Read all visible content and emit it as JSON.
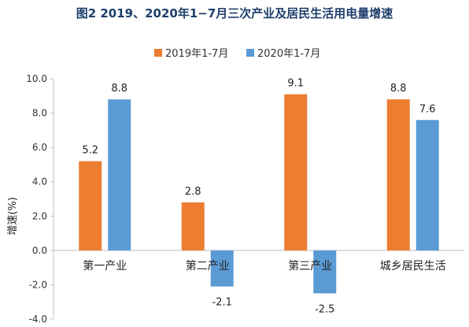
{
  "title": "图2 2019、2020年1−7月三次产业及居民生活用电量增速",
  "colors": {
    "s2019": "#ed7d31",
    "s2020": "#5b9bd5",
    "axis": "#bfbfbf"
  },
  "chart_data": {
    "type": "bar",
    "title": "图2 2019、2020年1−7月三次产业及居民生活用电量增速",
    "categories": [
      "第一产业",
      "第二产业",
      "第三产业",
      "城乡居民生活"
    ],
    "series": [
      {
        "name": "2019年1-7月",
        "values": [
          5.2,
          2.8,
          9.1,
          8.8
        ],
        "color": "#ed7d31"
      },
      {
        "name": "2020年1-7月",
        "values": [
          8.8,
          -2.1,
          -2.5,
          7.6
        ],
        "color": "#5b9bd5"
      }
    ],
    "data_labels": [
      [
        "5.2",
        "2.8",
        "9.1",
        "8.8"
      ],
      [
        "8.8",
        "-2.1",
        "-2.5",
        "7.6"
      ]
    ],
    "xlabel": "",
    "ylabel": "增速(%)",
    "ylim": [
      -4.0,
      10.0
    ],
    "yticks": [
      "-4.0",
      "-2.0",
      "0.0",
      "2.0",
      "4.0",
      "6.0",
      "8.0",
      "10.0"
    ],
    "grid": false,
    "legend_position": "top"
  }
}
